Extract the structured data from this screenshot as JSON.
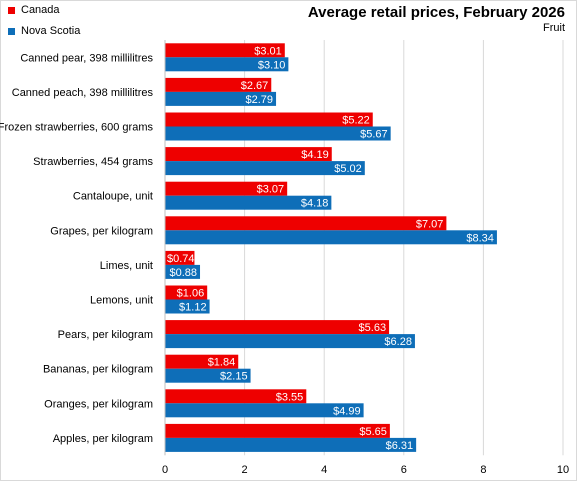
{
  "chart_data": {
    "type": "bar",
    "orientation": "horizontal",
    "title": "Average retail prices, February 2026",
    "subtitle": "Fruit",
    "categories": [
      "Canned pear, 398 millilitres",
      "Canned peach, 398 millilitres",
      "Frozen strawberries, 600 grams",
      "Strawberries, 454 grams",
      "Cantaloupe, unit",
      "Grapes, per kilogram",
      "Limes, unit",
      "Lemons, unit",
      "Pears, per kilogram",
      "Bananas, per kilogram",
      "Oranges, per kilogram",
      "Apples, per kilogram"
    ],
    "series": [
      {
        "name": "Canada",
        "color": "#ee0000",
        "values": [
          3.01,
          2.67,
          5.22,
          4.19,
          3.07,
          7.07,
          0.74,
          1.06,
          5.63,
          1.84,
          3.55,
          5.65
        ],
        "labels": [
          "$3.01",
          "$2.67",
          "$5.22",
          "$4.19",
          "$3.07",
          "$7.07",
          "$0.74",
          "$1.06",
          "$5.63",
          "$1.84",
          "$3.55",
          "$5.65"
        ]
      },
      {
        "name": "Nova Scotia",
        "color": "#0e6eb8",
        "values": [
          3.1,
          2.79,
          5.67,
          5.02,
          4.18,
          8.34,
          0.88,
          1.12,
          6.28,
          2.15,
          4.99,
          6.31
        ],
        "labels": [
          "$3.10",
          "$2.79",
          "$5.67",
          "$5.02",
          "$4.18",
          "$8.34",
          "$0.88",
          "$1.12",
          "$6.28",
          "$2.15",
          "$4.99",
          "$6.31"
        ]
      }
    ],
    "xlim": [
      0,
      10
    ],
    "xticks": [
      0,
      2,
      4,
      6,
      8,
      10
    ],
    "grid": true,
    "legend_position": "top-left"
  }
}
